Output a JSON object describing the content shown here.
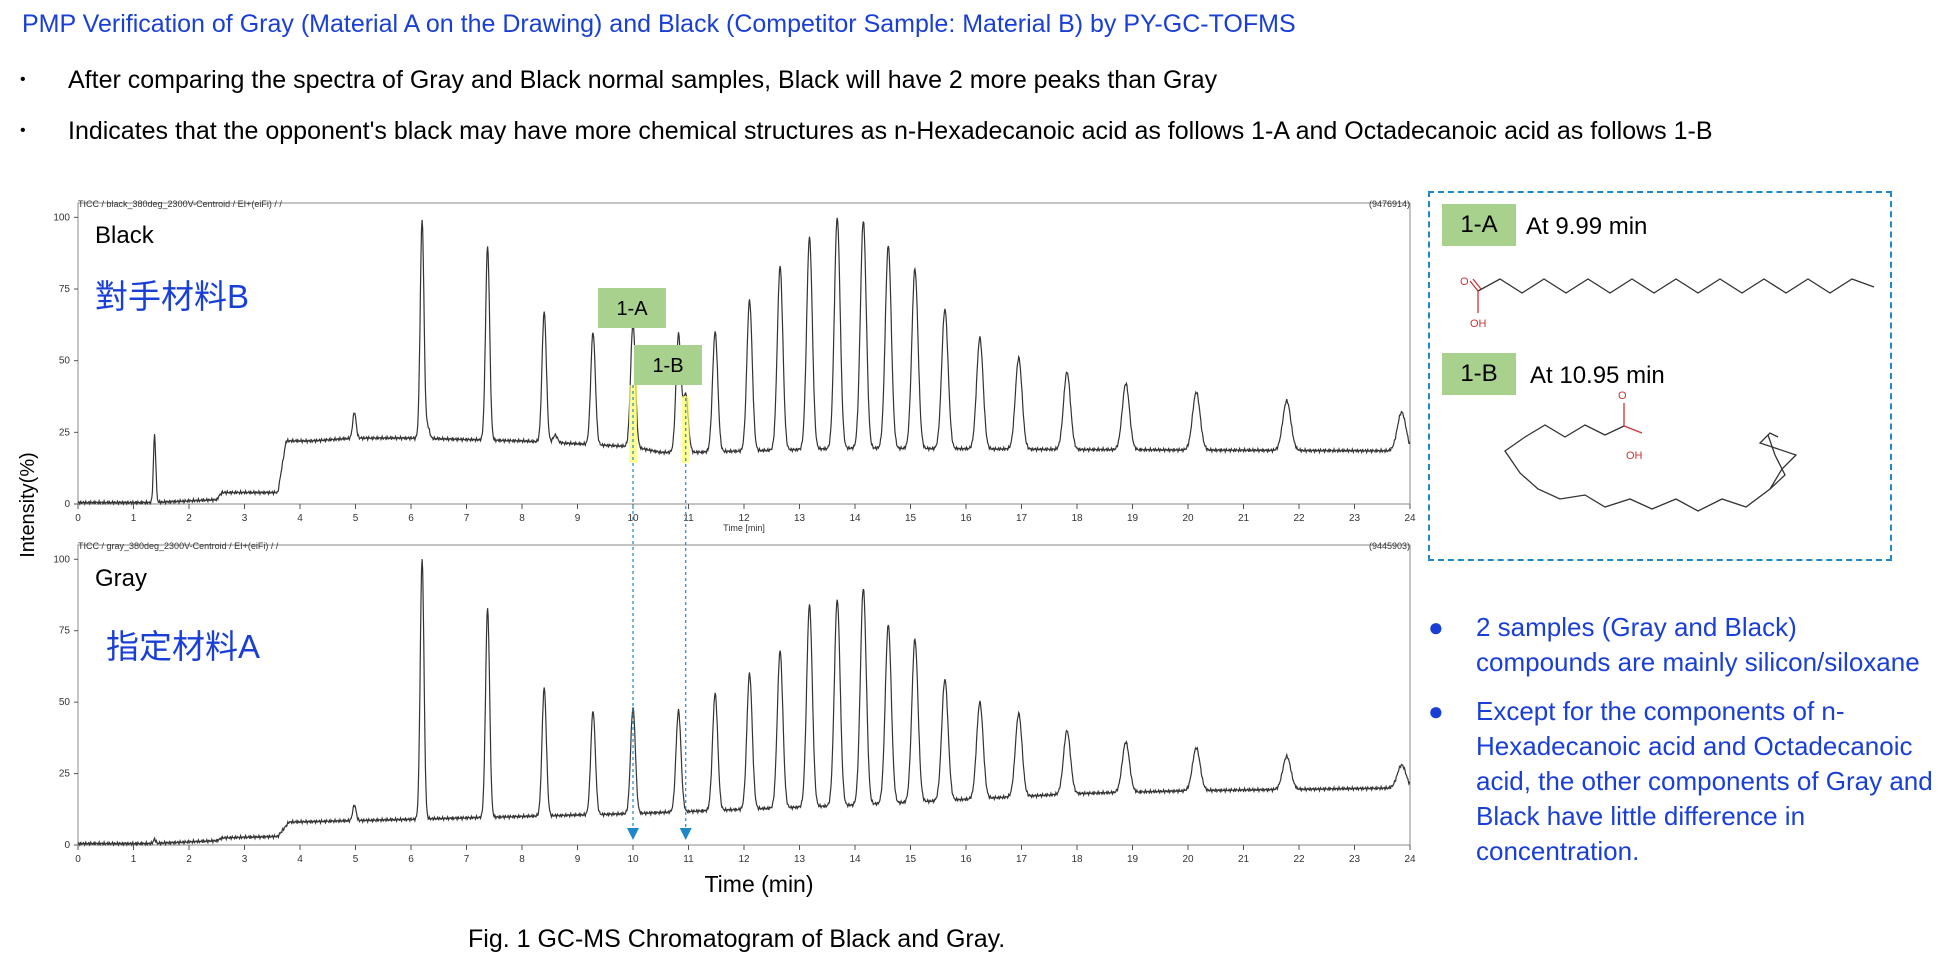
{
  "header": {
    "title": "PMP Verification of Gray (Material A on the Drawing) and Black (Competitor Sample: Material B) by PY-GC-TOFMS"
  },
  "bullets": [
    "After comparing the spectra of Gray and Black normal samples, Black will have 2 more peaks than Gray",
    "Indicates that the opponent's black may have more chemical structures as n-Hexadecanoic acid as follows 1-A and Octadecanoic acid as follows 1-B"
  ],
  "chart_data": {
    "type": "line",
    "ylabel": "Intensity(%)",
    "xlabel": "Time (min)",
    "xlabel_small": "Time [min]",
    "xlim": [
      0,
      24
    ],
    "ylim": [
      0,
      105
    ],
    "xticks": [
      0,
      1,
      2,
      3,
      4,
      5,
      6,
      7,
      8,
      9,
      10,
      11,
      12,
      13,
      14,
      15,
      16,
      17,
      18,
      19,
      20,
      21,
      22,
      23,
      24
    ],
    "yticks": [
      0,
      25,
      50,
      75,
      100
    ],
    "panels": [
      {
        "name": "Black",
        "header": "TICC / black_380deg_2300V-Centroid / EI+(eiFi) / /",
        "max_intensity": "(9476914)",
        "label": "Black",
        "chinese_label": "對手材料B",
        "baseline": [
          [
            0,
            0.5
          ],
          [
            1.3,
            0.5
          ],
          [
            2.5,
            1.5
          ],
          [
            2.6,
            4
          ],
          [
            3.6,
            4
          ],
          [
            3.75,
            22
          ],
          [
            4.2,
            22
          ],
          [
            5,
            23
          ],
          [
            6,
            23
          ],
          [
            8,
            22
          ],
          [
            10,
            20
          ],
          [
            10.5,
            18
          ],
          [
            11,
            18
          ],
          [
            14,
            19.5
          ],
          [
            18,
            19
          ],
          [
            24,
            18.5
          ]
        ],
        "peaks": [
          [
            1.38,
            24
          ],
          [
            2.55,
            3
          ],
          [
            4.98,
            32
          ],
          [
            6.2,
            99
          ],
          [
            6.3,
            27
          ],
          [
            7.38,
            90
          ],
          [
            8.4,
            67
          ],
          [
            8.6,
            24
          ],
          [
            9.28,
            60
          ],
          [
            10.0,
            63
          ],
          [
            10.82,
            59
          ],
          [
            10.95,
            38
          ],
          [
            11.48,
            60
          ],
          [
            12.1,
            71
          ],
          [
            12.65,
            83
          ],
          [
            13.18,
            93
          ],
          [
            13.68,
            100
          ],
          [
            14.15,
            99
          ],
          [
            14.6,
            90
          ],
          [
            15.08,
            82
          ],
          [
            15.62,
            68
          ],
          [
            16.25,
            58
          ],
          [
            16.95,
            51
          ],
          [
            17.82,
            46
          ],
          [
            18.88,
            42
          ],
          [
            20.15,
            39
          ],
          [
            21.78,
            36
          ],
          [
            23.85,
            32
          ]
        ]
      },
      {
        "name": "Gray",
        "header": "TICC / gray_380deg_2300V-Centroid / EI+(eiFi) / /",
        "max_intensity": "(9445903)",
        "label": "Gray",
        "chinese_label": "指定材料A",
        "baseline": [
          [
            0,
            0.5
          ],
          [
            1.3,
            0.5
          ],
          [
            2.5,
            1.5
          ],
          [
            2.6,
            2.5
          ],
          [
            3.6,
            3
          ],
          [
            3.8,
            8
          ],
          [
            6,
            9
          ],
          [
            10,
            11
          ],
          [
            14,
            14
          ],
          [
            16,
            16
          ],
          [
            18,
            18
          ],
          [
            20,
            19
          ],
          [
            24,
            20
          ]
        ],
        "peaks": [
          [
            1.38,
            2
          ],
          [
            4.98,
            14
          ],
          [
            6.2,
            100
          ],
          [
            7.38,
            83
          ],
          [
            8.4,
            55
          ],
          [
            9.28,
            47
          ],
          [
            10.0,
            48
          ],
          [
            10.82,
            47
          ],
          [
            11.48,
            53
          ],
          [
            12.1,
            60
          ],
          [
            12.65,
            68
          ],
          [
            13.18,
            84
          ],
          [
            13.68,
            86
          ],
          [
            14.15,
            90
          ],
          [
            14.6,
            77
          ],
          [
            15.08,
            72
          ],
          [
            15.62,
            58
          ],
          [
            16.25,
            50
          ],
          [
            16.95,
            46
          ],
          [
            17.82,
            40
          ],
          [
            18.88,
            36
          ],
          [
            20.15,
            34
          ],
          [
            21.78,
            31
          ],
          [
            23.85,
            28
          ]
        ]
      }
    ],
    "markers": [
      {
        "label": "1-A",
        "x": 10.0
      },
      {
        "label": "1-B",
        "x": 10.95
      }
    ],
    "colors": {
      "trace": "#333333",
      "marker_line": "#1e88c8",
      "highlight": "#ffff66",
      "tag": "#a9d18e"
    }
  },
  "sidebox": {
    "items": [
      {
        "tag": "1-A",
        "time": "At 9.99 min",
        "oh": "OH",
        "o": "O"
      },
      {
        "tag": "1-B",
        "time": "At 10.95 min",
        "oh": "OH",
        "o": "O"
      }
    ]
  },
  "notes": [
    "2 samples (Gray and Black) compounds are mainly silicon/siloxane",
    "Except for the components of n-Hexadecanoic acid and Octadecanoic acid, the other components of Gray and Black have little difference in concentration."
  ],
  "caption": "Fig. 1  GC-MS Chromatogram of Black and Gray."
}
